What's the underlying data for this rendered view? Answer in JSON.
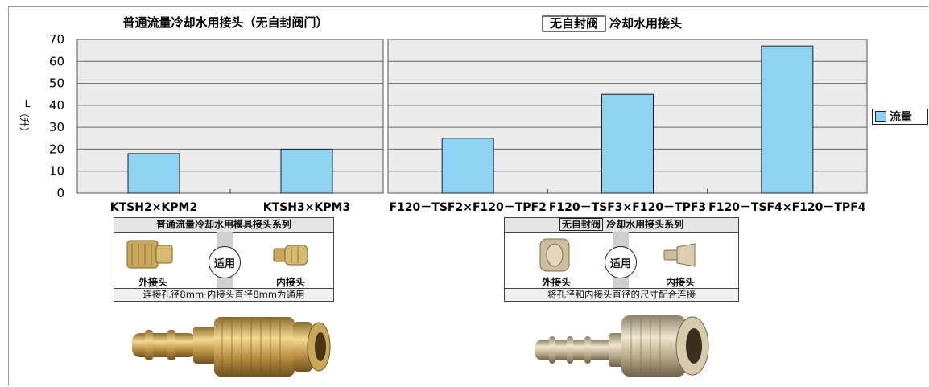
{
  "chart_data": {
    "type": "bar",
    "ylabel": "L（升）",
    "ylim": [
      0,
      70
    ],
    "yticks": [
      0,
      10,
      20,
      30,
      40,
      50,
      60,
      70
    ],
    "grid": true,
    "legend_position": "right",
    "series": [
      {
        "name": "流量",
        "color": "#8ed3f2"
      }
    ],
    "panels": [
      {
        "title": "普通流量冷却水用接头（无自封阀门）",
        "title_boxed": "",
        "categories": [
          "KTSH2×KPM2",
          "KTSH3×KPM3"
        ],
        "values": [
          18,
          20
        ]
      },
      {
        "title": "冷却水用接头",
        "title_boxed": "无自封阀",
        "categories": [
          "F120－TSF2×F120－TPF2",
          "F120－TSF3×F120－TPF3",
          "F120－TSF4×F120－TPF4"
        ],
        "values": [
          25,
          45,
          67
        ]
      }
    ]
  },
  "info_panels": [
    {
      "title": "普通流量冷却水用模具接头系列",
      "title_boxed": "",
      "badge": "适用",
      "left_label": "外接头",
      "right_label": "内接头",
      "footer": "连接孔径8mm·内接头直径8mm为通用"
    },
    {
      "title": "冷却水用接头系列",
      "title_boxed": "无自封阀",
      "badge": "适用",
      "left_label": "外接头",
      "right_label": "内接头",
      "footer": "将孔径和内接头直径的尺寸配合连接"
    }
  ],
  "colors": {
    "bar": "#8ed3f2",
    "plot_bg": "#ebebeb",
    "brass": "#c9a85b",
    "silver": "#bfb49a"
  }
}
